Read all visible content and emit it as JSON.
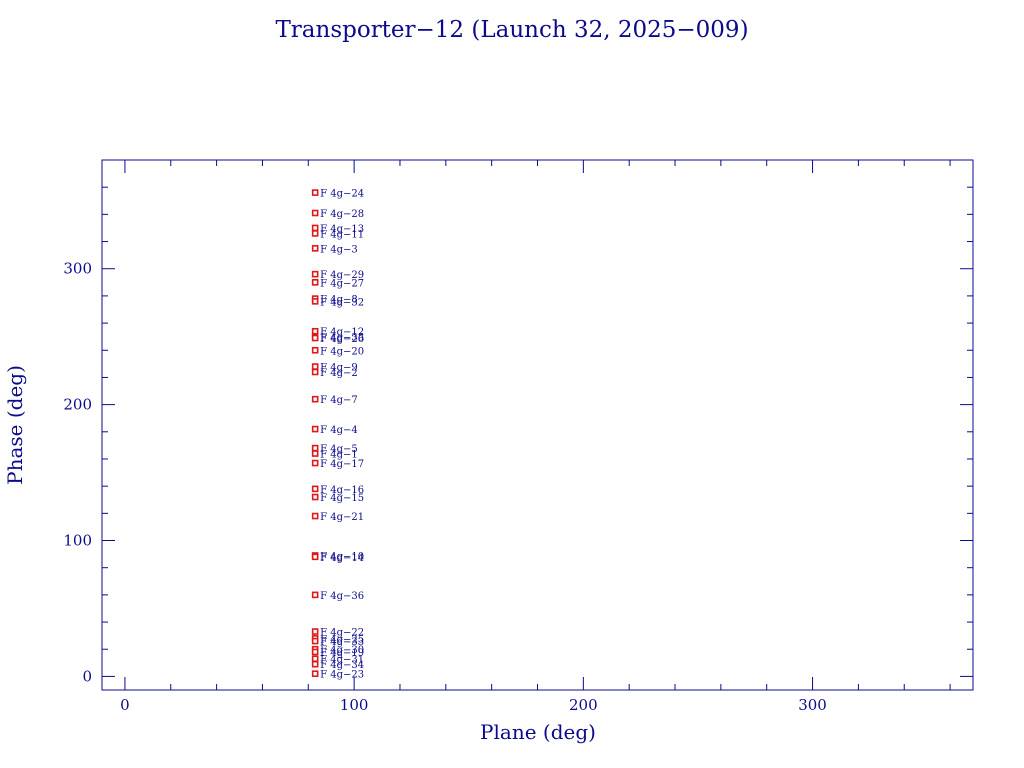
{
  "chart_data": {
    "type": "scatter",
    "title": "Transporter−12 (Launch 32, 2025−009)",
    "xlabel": "Plane (deg)",
    "ylabel": "Phase (deg)",
    "xlim": [
      -10,
      370
    ],
    "ylim": [
      -10,
      380
    ],
    "xticks": [
      0,
      100,
      200,
      300
    ],
    "yticks": [
      0,
      100,
      200,
      300
    ],
    "xtick_labels": [
      "0",
      "100",
      "200",
      "300"
    ],
    "ytick_labels": [
      "0",
      "100",
      "200",
      "300"
    ],
    "grid": false,
    "legend": "none",
    "marker_color": "#e01818",
    "label_color": "#0a0a8c",
    "axis_color": "#0a0a8c",
    "points": [
      {
        "label": "F 4g−24",
        "x": 83,
        "y": 356
      },
      {
        "label": "F 4g−28",
        "x": 83,
        "y": 341
      },
      {
        "label": "F 4g−13",
        "x": 83,
        "y": 330
      },
      {
        "label": "F 4g−11",
        "x": 83,
        "y": 326
      },
      {
        "label": "F 4g−3",
        "x": 83,
        "y": 315
      },
      {
        "label": "F 4g−29",
        "x": 83,
        "y": 296
      },
      {
        "label": "F 4g−27",
        "x": 83,
        "y": 290
      },
      {
        "label": "F 4g−8",
        "x": 83,
        "y": 278
      },
      {
        "label": "F 4g−32",
        "x": 83,
        "y": 276
      },
      {
        "label": "F 4g−12",
        "x": 83,
        "y": 254
      },
      {
        "label": "F 4g−35",
        "x": 83,
        "y": 250
      },
      {
        "label": "F 4g−26",
        "x": 83,
        "y": 249
      },
      {
        "label": "F 4g−20",
        "x": 83,
        "y": 240
      },
      {
        "label": "F 4g−9",
        "x": 83,
        "y": 228
      },
      {
        "label": "F 4g−2",
        "x": 83,
        "y": 224
      },
      {
        "label": "F 4g−7",
        "x": 83,
        "y": 204
      },
      {
        "label": "F 4g−4",
        "x": 83,
        "y": 182
      },
      {
        "label": "F 4g−5",
        "x": 83,
        "y": 168
      },
      {
        "label": "F 4g−1",
        "x": 83,
        "y": 164
      },
      {
        "label": "F 4g−17",
        "x": 83,
        "y": 157
      },
      {
        "label": "F 4g−16",
        "x": 83,
        "y": 138
      },
      {
        "label": "F 4g−15",
        "x": 83,
        "y": 132
      },
      {
        "label": "F 4g−21",
        "x": 83,
        "y": 118
      },
      {
        "label": "F 4g−10",
        "x": 83,
        "y": 89
      },
      {
        "label": "F 4g−14",
        "x": 83,
        "y": 88
      },
      {
        "label": "F 4g−36",
        "x": 83,
        "y": 60
      },
      {
        "label": "F 4g−22",
        "x": 83,
        "y": 33
      },
      {
        "label": "F 4g−25",
        "x": 83,
        "y": 28
      },
      {
        "label": "F 4g−33",
        "x": 83,
        "y": 26
      },
      {
        "label": "F 4g−30",
        "x": 83,
        "y": 20
      },
      {
        "label": "F 4g−19",
        "x": 83,
        "y": 18
      },
      {
        "label": "F 4g−31",
        "x": 83,
        "y": 13
      },
      {
        "label": "F 4g−34",
        "x": 83,
        "y": 9
      },
      {
        "label": "F 4g−23",
        "x": 83,
        "y": 2
      }
    ]
  }
}
